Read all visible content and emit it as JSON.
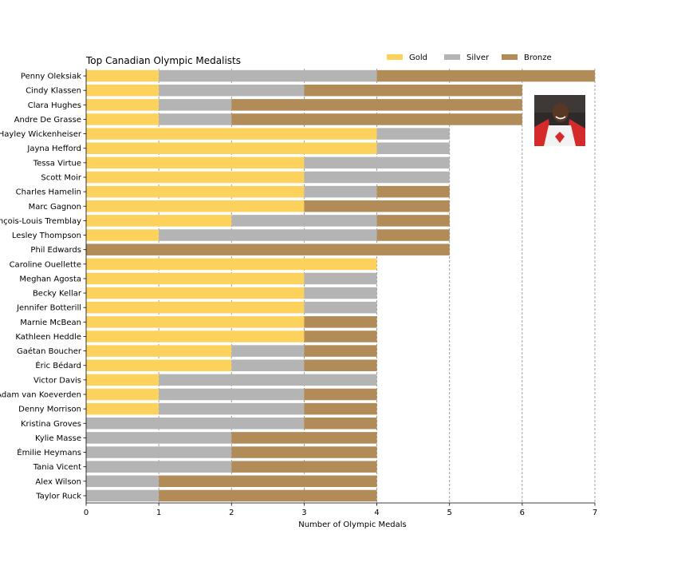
{
  "chart_data": {
    "type": "bar",
    "orientation": "horizontal",
    "stacked": true,
    "title": "Top Canadian Olympic Medalists",
    "xlabel": "Number of Olympic Medals",
    "ylabel": "",
    "xlim": [
      0,
      7
    ],
    "xticks": [
      0,
      1,
      2,
      3,
      4,
      5,
      6,
      7
    ],
    "grid": "vertical dashed at major ticks",
    "legend_position": "top-right",
    "categories": [
      "Penny Oleksiak",
      "Cindy Klassen",
      "Clara Hughes",
      "Andre De Grasse",
      "Hayley Wickenheiser",
      "Jayna Hefford",
      "Tessa Virtue",
      "Scott Moir",
      "Charles Hamelin",
      "Marc Gagnon",
      "François-Louis Tremblay",
      "Lesley Thompson",
      "Phil Edwards",
      "Caroline Ouellette",
      "Meghan Agosta",
      "Becky Kellar",
      "Jennifer Botterill",
      "Marnie McBean",
      "Kathleen Heddle",
      "Gaétan Boucher",
      "Éric Bédard",
      "Victor Davis",
      "Adam van Koeverden",
      "Denny Morrison",
      "Kristina Groves",
      "Kylie Masse",
      "Émilie Heymans",
      "Tania Vicent",
      "Alex Wilson",
      "Taylor Ruck"
    ],
    "series": [
      {
        "name": "Gold",
        "color": "#fcd25c",
        "values": [
          1,
          1,
          1,
          1,
          4,
          4,
          3,
          3,
          3,
          3,
          2,
          1,
          0,
          4,
          3,
          3,
          3,
          3,
          3,
          2,
          2,
          1,
          1,
          1,
          0,
          0,
          0,
          0,
          0,
          0
        ]
      },
      {
        "name": "Silver",
        "color": "#b4b4b4",
        "values": [
          3,
          2,
          1,
          1,
          1,
          1,
          2,
          2,
          1,
          0,
          2,
          3,
          0,
          0,
          1,
          1,
          1,
          0,
          0,
          1,
          1,
          3,
          2,
          2,
          3,
          2,
          2,
          2,
          1,
          1
        ]
      },
      {
        "name": "Bronze",
        "color": "#b18c58",
        "values": [
          3,
          3,
          4,
          4,
          0,
          0,
          0,
          0,
          1,
          2,
          1,
          1,
          5,
          0,
          0,
          0,
          0,
          1,
          1,
          1,
          1,
          0,
          1,
          1,
          1,
          2,
          2,
          2,
          3,
          3
        ]
      }
    ],
    "inset_image": {
      "icon": "athlete-photo",
      "colors": [
        "#c0392b",
        "#ffffff",
        "#4a2e1f"
      ]
    }
  }
}
